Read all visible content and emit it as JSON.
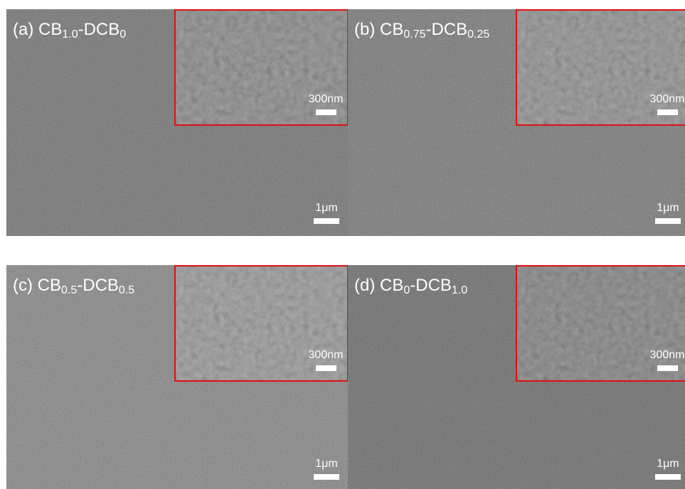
{
  "panels": [
    {
      "label": [
        "(a) CB",
        "1.0",
        "-DCB",
        "0"
      ],
      "inset_scale": "300nm",
      "scale": "1μm"
    },
    {
      "label": [
        "(b) CB",
        "0.75",
        "-DCB",
        "0.25"
      ],
      "inset_scale": "300nm",
      "scale": "1μm"
    },
    {
      "label": [
        "(c) CB",
        "0.5",
        "-DCB",
        "0.5"
      ],
      "inset_scale": "300nm",
      "scale": "1μm"
    },
    {
      "label": [
        "(d) CB",
        "0",
        "-DCB",
        "1.0"
      ],
      "inset_scale": "300nm",
      "scale": "1μm"
    }
  ]
}
